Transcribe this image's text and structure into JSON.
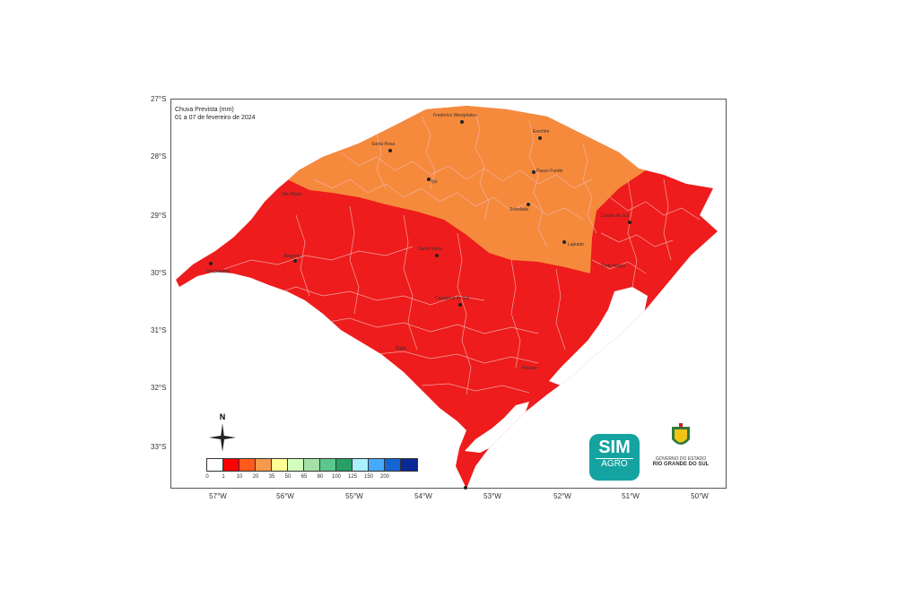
{
  "title": {
    "line1": "Chuva Prevista (mm)",
    "line2": "01 a 07 de fevereiro de 2024"
  },
  "latitudes": [
    "27°S",
    "28°S",
    "29°S",
    "30°S",
    "31°S",
    "32°S",
    "33°S"
  ],
  "longitudes": [
    "57°W",
    "56°W",
    "55°W",
    "54°W",
    "53°W",
    "52°W",
    "51°W",
    "50°W"
  ],
  "cities": [
    {
      "name": "Frederico Westphalen"
    },
    {
      "name": "Erechim"
    },
    {
      "name": "Santa Rosa"
    },
    {
      "name": "Passo Fundo"
    },
    {
      "name": "Ijuí"
    },
    {
      "name": "São Borja"
    },
    {
      "name": "Soledade"
    },
    {
      "name": "Caxias do Sul"
    },
    {
      "name": "Lajeado"
    },
    {
      "name": "Alegrete"
    },
    {
      "name": "Uruguaiana"
    },
    {
      "name": "Santa Maria"
    },
    {
      "name": "Porto Alegre"
    },
    {
      "name": "Caçapava do Sul"
    },
    {
      "name": "Bagé"
    },
    {
      "name": "Pelotas"
    }
  ],
  "legend": {
    "labels": [
      "0",
      "1",
      "10",
      "20",
      "35",
      "50",
      "65",
      "80",
      "100",
      "125",
      "150",
      "200"
    ],
    "colors": [
      "#ffffff",
      "#ff0000",
      "#ff5a1e",
      "#f59a4a",
      "#ffff96",
      "#d2ffbe",
      "#a6e0a6",
      "#5ac88c",
      "#28a064",
      "#aaf0ff",
      "#46aaff",
      "#1464d2",
      "#0a2896"
    ]
  },
  "map_colors": {
    "rain_1_10": "#ee1c1c",
    "rain_10_20": "#f68a3c",
    "lagoon": "#ffffff",
    "boundary": "#f3b3b3"
  },
  "compass": {
    "label": "N"
  },
  "logos": {
    "sim_top": "SIM",
    "sim_bottom": "AGRO",
    "gov_line1": "GOVERNO DO ESTADO",
    "gov_line2": "RIO GRANDE DO SUL"
  }
}
